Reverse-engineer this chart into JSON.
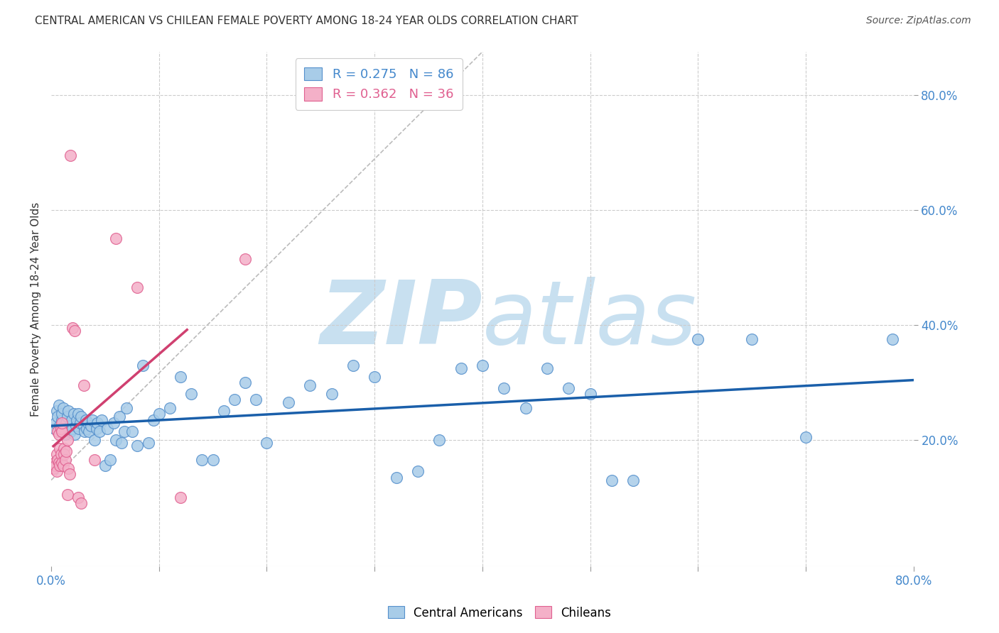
{
  "title": "CENTRAL AMERICAN VS CHILEAN FEMALE POVERTY AMONG 18-24 YEAR OLDS CORRELATION CHART",
  "source": "Source: ZipAtlas.com",
  "ylabel": "Female Poverty Among 18-24 Year Olds",
  "xlim": [
    0.0,
    0.8
  ],
  "ylim": [
    -0.02,
    0.875
  ],
  "blue_R": 0.275,
  "blue_N": 86,
  "pink_R": 0.362,
  "pink_N": 36,
  "blue_color": "#a8cce8",
  "pink_color": "#f4b0c8",
  "blue_edge_color": "#5590cc",
  "pink_edge_color": "#e06090",
  "blue_line_color": "#1a5faa",
  "pink_line_color": "#d04070",
  "axis_color": "#4488cc",
  "grid_color": "#cccccc",
  "watermark_color": "#c8e0f0",
  "blue_x": [
    0.003,
    0.004,
    0.005,
    0.006,
    0.007,
    0.008,
    0.009,
    0.01,
    0.01,
    0.011,
    0.012,
    0.013,
    0.014,
    0.015,
    0.016,
    0.017,
    0.018,
    0.019,
    0.02,
    0.021,
    0.022,
    0.023,
    0.024,
    0.025,
    0.026,
    0.027,
    0.028,
    0.03,
    0.031,
    0.032,
    0.033,
    0.034,
    0.035,
    0.037,
    0.038,
    0.04,
    0.042,
    0.043,
    0.045,
    0.047,
    0.05,
    0.052,
    0.055,
    0.058,
    0.06,
    0.063,
    0.065,
    0.068,
    0.07,
    0.075,
    0.08,
    0.085,
    0.09,
    0.095,
    0.1,
    0.11,
    0.12,
    0.13,
    0.14,
    0.15,
    0.16,
    0.17,
    0.18,
    0.19,
    0.2,
    0.22,
    0.24,
    0.26,
    0.28,
    0.3,
    0.32,
    0.34,
    0.36,
    0.38,
    0.4,
    0.42,
    0.44,
    0.46,
    0.48,
    0.5,
    0.52,
    0.54,
    0.6,
    0.65,
    0.7,
    0.78
  ],
  "blue_y": [
    0.22,
    0.23,
    0.25,
    0.24,
    0.26,
    0.225,
    0.215,
    0.235,
    0.245,
    0.255,
    0.22,
    0.21,
    0.23,
    0.24,
    0.25,
    0.225,
    0.215,
    0.235,
    0.22,
    0.245,
    0.21,
    0.225,
    0.235,
    0.245,
    0.22,
    0.23,
    0.24,
    0.225,
    0.215,
    0.235,
    0.22,
    0.23,
    0.215,
    0.225,
    0.235,
    0.2,
    0.22,
    0.23,
    0.215,
    0.235,
    0.155,
    0.22,
    0.165,
    0.23,
    0.2,
    0.24,
    0.195,
    0.215,
    0.255,
    0.215,
    0.19,
    0.33,
    0.195,
    0.235,
    0.245,
    0.255,
    0.31,
    0.28,
    0.165,
    0.165,
    0.25,
    0.27,
    0.3,
    0.27,
    0.195,
    0.265,
    0.295,
    0.28,
    0.33,
    0.31,
    0.135,
    0.145,
    0.2,
    0.325,
    0.33,
    0.29,
    0.255,
    0.325,
    0.29,
    0.28,
    0.13,
    0.13,
    0.375,
    0.375,
    0.205,
    0.375
  ],
  "pink_x": [
    0.002,
    0.003,
    0.004,
    0.005,
    0.005,
    0.006,
    0.006,
    0.007,
    0.007,
    0.008,
    0.008,
    0.009,
    0.009,
    0.01,
    0.01,
    0.01,
    0.011,
    0.012,
    0.012,
    0.013,
    0.014,
    0.015,
    0.015,
    0.016,
    0.017,
    0.018,
    0.02,
    0.022,
    0.025,
    0.028,
    0.03,
    0.04,
    0.06,
    0.08,
    0.12,
    0.18
  ],
  "pink_y": [
    0.15,
    0.16,
    0.155,
    0.145,
    0.175,
    0.165,
    0.215,
    0.16,
    0.21,
    0.155,
    0.185,
    0.175,
    0.22,
    0.16,
    0.215,
    0.23,
    0.155,
    0.185,
    0.175,
    0.165,
    0.18,
    0.2,
    0.105,
    0.15,
    0.14,
    0.695,
    0.395,
    0.39,
    0.1,
    0.09,
    0.295,
    0.165,
    0.55,
    0.465,
    0.1,
    0.515
  ]
}
